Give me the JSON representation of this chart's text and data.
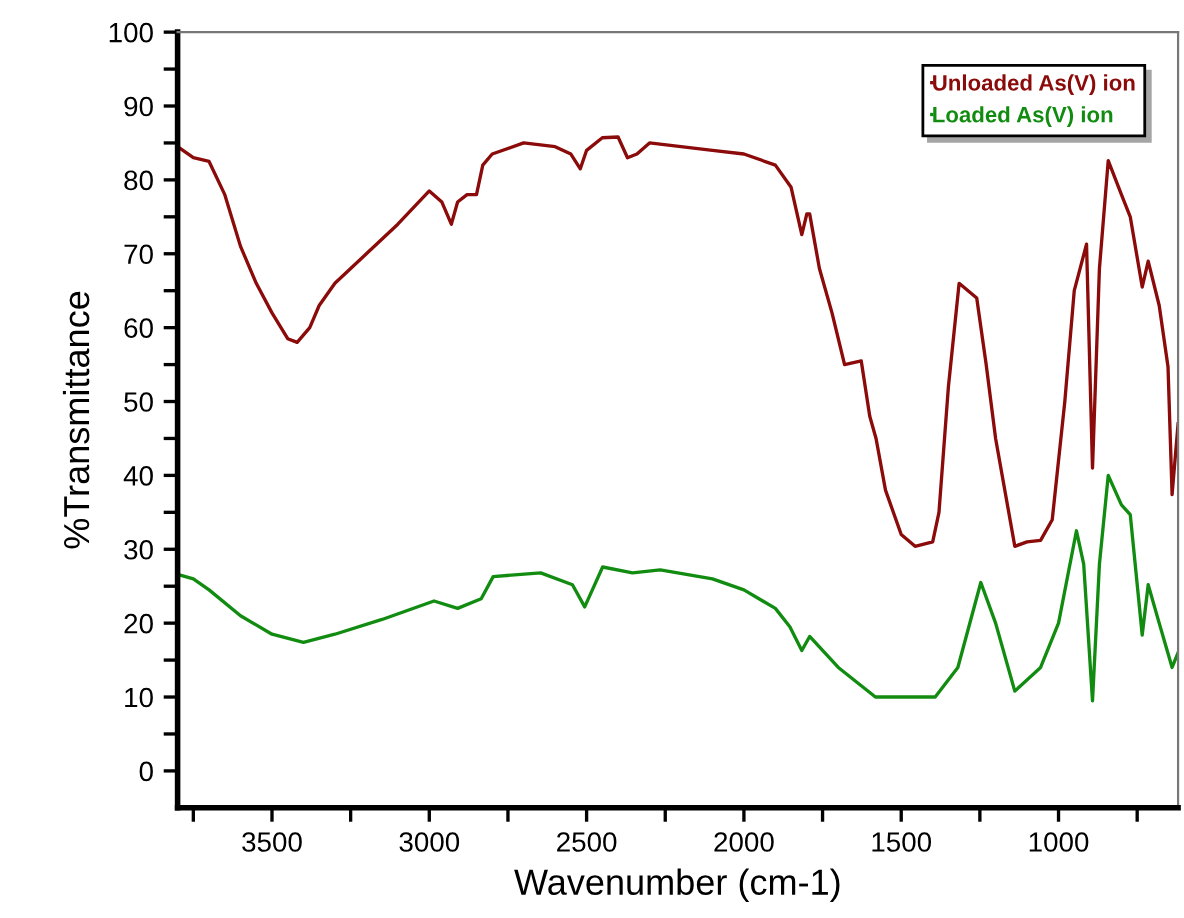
{
  "chart_data": {
    "type": "line",
    "xlabel": "Wavenumber (cm-1)",
    "ylabel": "%Transmittance",
    "xlim": [
      3800,
      620
    ],
    "ylim": [
      -5,
      100
    ],
    "xticks": [
      {
        "value": 3750,
        "label": null
      },
      3500,
      {
        "value": 3250,
        "label": null
      },
      3000,
      {
        "value": 2750,
        "label": null
      },
      2500,
      {
        "value": 2250,
        "label": null
      },
      2000,
      {
        "value": 1750,
        "label": null
      },
      1500,
      {
        "value": 1250,
        "label": null
      },
      1000,
      {
        "value": 750,
        "label": null
      }
    ],
    "yticks": [
      0,
      {
        "value": 5,
        "label": null
      },
      10,
      {
        "value": 15,
        "label": null
      },
      20,
      {
        "value": 25,
        "label": null
      },
      30,
      {
        "value": 35,
        "label": null
      },
      40,
      {
        "value": 45,
        "label": null
      },
      50,
      {
        "value": 55,
        "label": null
      },
      60,
      {
        "value": 65,
        "label": null
      },
      70,
      {
        "value": 75,
        "label": null
      },
      80,
      {
        "value": 85,
        "label": null
      },
      90,
      {
        "value": 95,
        "label": null
      },
      100
    ],
    "legend": "top right",
    "grid": false,
    "series": [
      {
        "name": "Unloaded As(V) ion",
        "color": "#8b0a0a",
        "x": [
          3800,
          3750,
          3700,
          3650,
          3600,
          3550,
          3500,
          3450,
          3420,
          3380,
          3350,
          3300,
          3200,
          3100,
          3000,
          2960,
          2930,
          2910,
          2880,
          2850,
          2830,
          2800,
          2700,
          2600,
          2550,
          2520,
          2500,
          2450,
          2400,
          2370,
          2340,
          2300,
          2200,
          2100,
          2000,
          1900,
          1850,
          1816,
          1800,
          1791,
          1760,
          1720,
          1680,
          1627,
          1600,
          1580,
          1550,
          1500,
          1456,
          1400,
          1380,
          1350,
          1316,
          1260,
          1230,
          1200,
          1139,
          1100,
          1057,
          1020,
          980,
          950,
          911,
          892,
          870,
          842,
          800,
          772,
          734,
          715,
          680,
          652,
          639,
          620
        ],
        "values": [
          84.5,
          83,
          82.5,
          78,
          71,
          66,
          62,
          58.5,
          58,
          60,
          63,
          66,
          70,
          74,
          78.5,
          77,
          74,
          77,
          78,
          78,
          82,
          83.5,
          85,
          84.5,
          83.5,
          81.5,
          84,
          85.7,
          85.8,
          83,
          83.5,
          85,
          84.5,
          84,
          83.5,
          82,
          79,
          72.6,
          75.4,
          75.4,
          68,
          62,
          55,
          55.5,
          48,
          45,
          38,
          32,
          30.4,
          31,
          35,
          52,
          66,
          64,
          55,
          45,
          30.4,
          31,
          31.2,
          34,
          50,
          65,
          71.3,
          41,
          68,
          82.6,
          78,
          75,
          65.5,
          69,
          63,
          54.7,
          37.4,
          47
        ]
      },
      {
        "name": "Loaded As(V) ion",
        "color": "#118c11",
        "x": [
          3800,
          3750,
          3700,
          3600,
          3500,
          3400,
          3300,
          3150,
          2985,
          2910,
          2835,
          2797,
          2646,
          2545,
          2506,
          2449,
          2354,
          2266,
          2100,
          2000,
          1900,
          1854,
          1816,
          1791,
          1700,
          1582,
          1392,
          1320,
          1247,
          1200,
          1139,
          1057,
          1000,
          943,
          920,
          892,
          870,
          842,
          800,
          772,
          734,
          715,
          680,
          639,
          620
        ],
        "values": [
          26.6,
          26,
          24.5,
          21,
          18.5,
          17.4,
          18.5,
          20.5,
          23,
          22,
          23.3,
          26.3,
          26.8,
          25.2,
          22.2,
          27.6,
          26.8,
          27.2,
          26,
          24.5,
          22,
          19.5,
          16.3,
          18.2,
          14,
          10,
          10,
          14,
          25.5,
          20,
          10.8,
          14,
          20,
          32.5,
          28,
          9.5,
          28,
          40,
          36,
          34.7,
          18.4,
          25.2,
          20,
          14,
          16
        ]
      }
    ]
  }
}
